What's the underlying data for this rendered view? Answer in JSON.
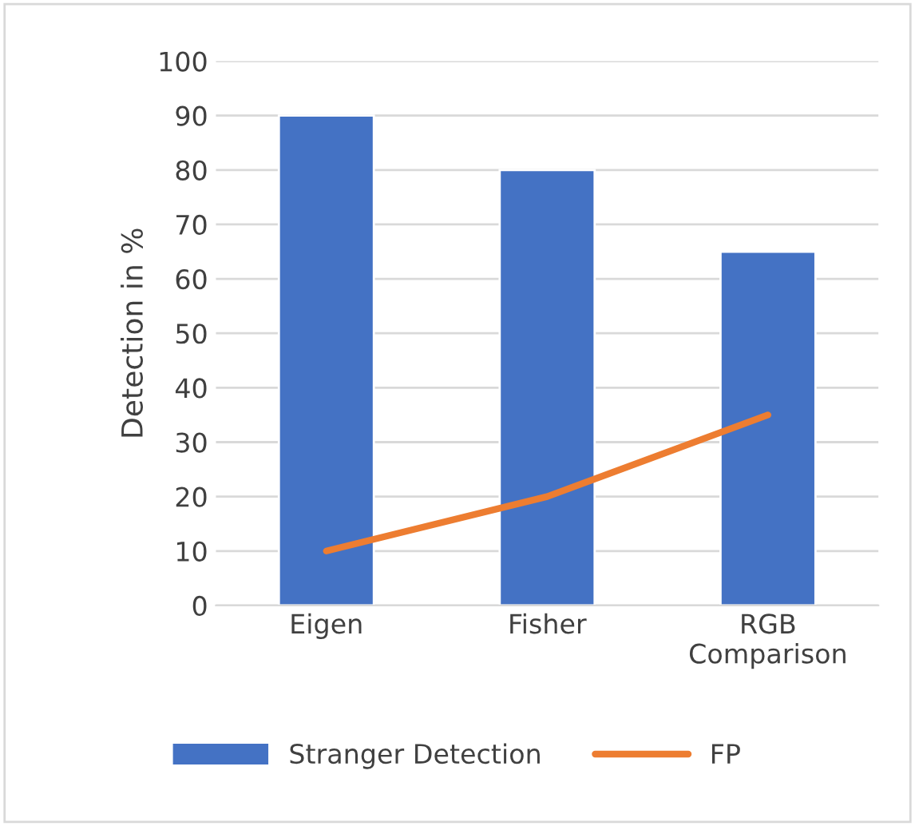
{
  "chart_data": {
    "type": "bar",
    "ylabel": "Detection in %",
    "categories": [
      "Eigen",
      "Fisher",
      "RGB\nComparison"
    ],
    "series": [
      {
        "name": "Stranger Detection",
        "color": "#4472c4",
        "values": [
          90,
          80,
          65
        ]
      },
      {
        "name": "FP",
        "type": "line",
        "color": "#ed7d31",
        "values": [
          10,
          20,
          35
        ]
      }
    ],
    "ylim": [
      0,
      100
    ],
    "yticks": [
      0,
      10,
      20,
      30,
      40,
      50,
      60,
      70,
      80,
      90,
      100
    ],
    "grid": "y",
    "legend": "bottom",
    "marker": "none",
    "line_style": "solid"
  }
}
